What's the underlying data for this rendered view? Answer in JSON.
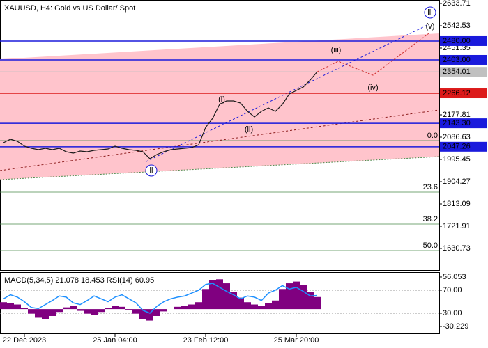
{
  "chart_data": [
    {
      "type": "price",
      "title": "XAUUSD, H4:  Gold vs US Dollar/ Spot",
      "categories": [
        null,
        null,
        null,
        "22 Dec 2023",
        null,
        null,
        null,
        null,
        null,
        null,
        null,
        null,
        null,
        null,
        null,
        null,
        "25 Jan 04:00",
        null,
        null,
        null,
        null,
        null,
        null,
        null,
        null,
        null,
        null,
        null,
        null,
        "23 Feb 12:00",
        null,
        null,
        null,
        null,
        null,
        null,
        null,
        null,
        null,
        null,
        null,
        null,
        "25 Mar 20:00",
        null,
        null,
        null,
        null,
        null,
        null,
        null,
        null,
        null,
        null,
        null,
        null,
        null,
        null,
        null,
        null,
        null,
        null,
        null
      ],
      "values": [
        2063.8,
        2078.1,
        2069.5,
        2049.6,
        2041.0,
        2035.3,
        2041.0,
        2035.3,
        2041.0,
        2026.8,
        2021.1,
        2029.6,
        2026.8,
        2032.5,
        2035.3,
        2038.2,
        2049.6,
        2041.0,
        2035.3,
        2032.5,
        2026.8,
        1998.3,
        2015.4,
        2026.8,
        2035.3,
        2038.2,
        2041.0,
        2043.9,
        2055.3,
        2126.5,
        2163.6,
        2220.6,
        2234.8,
        2234.8,
        2226.3,
        2192.1,
        2169.3,
        2192.1,
        2206.3,
        2192.1,
        2220.6,
        2263.4,
        2277.6,
        2291.9,
        2320.4,
        2354.01,
        null,
        null,
        null,
        null,
        null,
        null,
        null,
        null,
        null,
        null,
        null,
        null,
        null,
        null,
        null,
        null
      ],
      "forecast": [
        null,
        null,
        null,
        null,
        null,
        null,
        null,
        null,
        null,
        null,
        null,
        null,
        null,
        null,
        null,
        null,
        null,
        null,
        null,
        null,
        null,
        null,
        null,
        null,
        null,
        null,
        null,
        null,
        null,
        null,
        null,
        null,
        null,
        null,
        null,
        null,
        null,
        null,
        null,
        null,
        null,
        null,
        null,
        null,
        null,
        2354.01,
        null,
        null,
        2397.2,
        null,
        null,
        null,
        null,
        2340.2,
        null,
        null,
        null,
        null,
        null,
        null,
        null,
        2511.2
      ],
      "color": "#1a1a1a",
      "forecast_color": "#d03030",
      "ylim": [
        1542.4,
        2648
      ],
      "yticks": [
        2633.71,
        2542.53,
        2451.35,
        2177.81,
        2086.63,
        1995.45,
        1904.27,
        1813.09,
        1721.91,
        1630.73
      ],
      "levels": [
        {
          "value": 2480,
          "label": "2480.00",
          "color": "#1a1adc"
        },
        {
          "value": 2403,
          "label": "2403.00",
          "color": "#1a1adc"
        },
        {
          "value": 2354.01,
          "label": "2354.01",
          "color": "#c0c0c0"
        },
        {
          "value": 2266.12,
          "label": "2266.12",
          "color": "#dc1a1a"
        },
        {
          "value": 2143.3,
          "label": "2143.30",
          "color": "#1a1adc"
        },
        {
          "value": 2047.26,
          "label": "2047.26",
          "color": "#1a1adc"
        }
      ],
      "fib": [
        {
          "label": "0.0",
          "value": 2072.4
        },
        {
          "label": "23.6",
          "value": 1861.5
        },
        {
          "label": "38.2",
          "value": 1730.5
        },
        {
          "label": "50.0",
          "value": 1622.2
        }
      ],
      "fib_color": "#4a8a4a",
      "channel": {
        "upper": [
          2405.7,
          2511.2
        ],
        "lower": [
          1912.8,
          2006.8
        ],
        "color": "#ffc4cc"
      },
      "trendlines": [
        {
          "start": 1949.8,
          "end": 2197.8,
          "color": "#8b1a1a"
        },
        {
          "start": 1986.9,
          "end": 2548.2,
          "color": "#1a1adc"
        }
      ],
      "waves": [
        {
          "label": "(i)",
          "color": "#d02020"
        },
        {
          "label": "(ii)",
          "color": "#d02020"
        },
        {
          "label": "(iii)",
          "color": "#d02020"
        },
        {
          "label": "(iv)",
          "color": "#d02020"
        },
        {
          "label": "(v)",
          "color": "#d02020"
        },
        {
          "label": "ii",
          "color": "#1a1adc"
        },
        {
          "label": "iii",
          "color": "#1a1adc"
        }
      ]
    },
    {
      "type": "macd",
      "title": "MACD(5,34,5) 21.078 18.453 RSI(14) 60.95",
      "values": [
        12,
        10,
        8,
        2,
        -8,
        -15,
        -18,
        -12,
        -5,
        3,
        5,
        -3,
        -8,
        -10,
        -5,
        2,
        6,
        4,
        -2,
        -8,
        -18,
        -20,
        -12,
        -4,
        0,
        4,
        6,
        8,
        12,
        35,
        50,
        52,
        45,
        30,
        20,
        12,
        8,
        5,
        10,
        15,
        35,
        45,
        48,
        42,
        30,
        21.078
      ],
      "rsi": [
        55,
        62,
        58,
        50,
        40,
        38,
        45,
        52,
        60,
        58,
        48,
        45,
        52,
        60,
        55,
        50,
        58,
        62,
        55,
        48,
        35,
        30,
        42,
        50,
        55,
        58,
        60,
        65,
        70,
        80,
        82,
        75,
        68,
        62,
        55,
        60,
        58,
        52,
        65,
        70,
        78,
        72,
        75,
        68,
        60,
        60.95
      ],
      "color": "#800080",
      "rsi_color": "#1e90ff",
      "ylim": [
        -43.6,
        63.3
      ],
      "yticks": [
        56.053,
        -30.229
      ],
      "y2lim": [
        -6.4,
        100.3
      ],
      "y2ticks": [
        {
          "value": 70,
          "label": "70.00"
        },
        {
          "value": 30,
          "label": "30.00"
        }
      ]
    }
  ]
}
